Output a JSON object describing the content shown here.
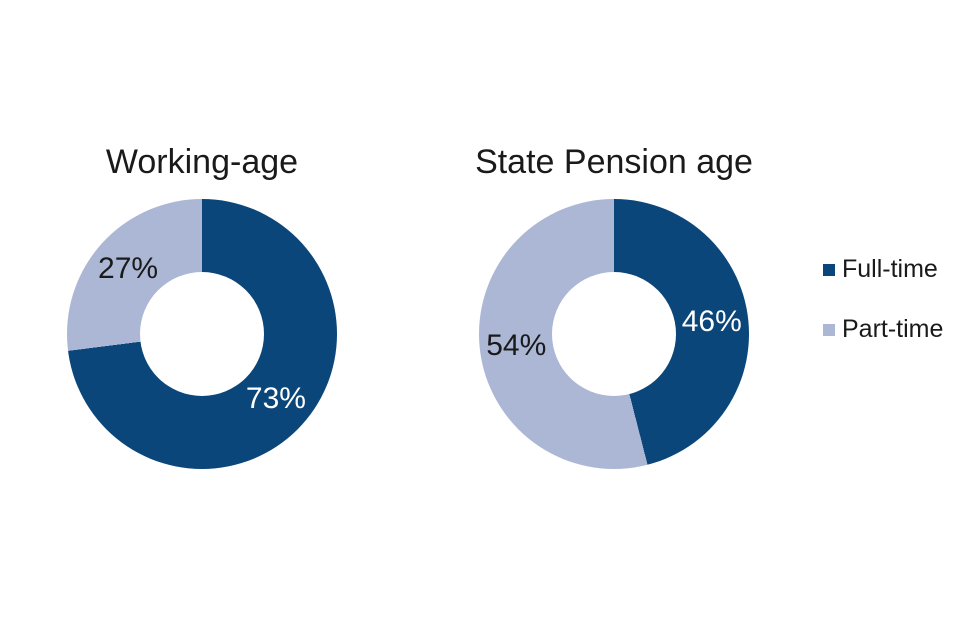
{
  "figure": {
    "background": "#FFFFFF"
  },
  "legend": {
    "position": "right",
    "items": [
      {
        "label": "Full-time",
        "color": "#0A4679"
      },
      {
        "label": "Part-time",
        "color": "#ACB7D6"
      }
    ]
  },
  "chart_data": [
    {
      "type": "pie",
      "subtype": "donut",
      "title": "Working-age",
      "categories": [
        "Full-time",
        "Part-time"
      ],
      "values": [
        73,
        27
      ],
      "unit": "%",
      "colors": [
        "#0A4679",
        "#ACB7D6"
      ],
      "label_colors": [
        "#FFFFFF",
        "#1A1A1A"
      ],
      "start_angle_deg": 0,
      "direction": "clockwise",
      "hole_ratio": 0.46,
      "label_radius_ratio": 0.73
    },
    {
      "type": "pie",
      "subtype": "donut",
      "title": "State Pension age",
      "categories": [
        "Full-time",
        "Part-time"
      ],
      "values": [
        46,
        54
      ],
      "unit": "%",
      "colors": [
        "#0A4679",
        "#ACB7D6"
      ],
      "label_colors": [
        "#FFFFFF",
        "#1A1A1A"
      ],
      "start_angle_deg": 0,
      "direction": "clockwise",
      "hole_ratio": 0.46,
      "label_radius_ratio": 0.73
    }
  ]
}
